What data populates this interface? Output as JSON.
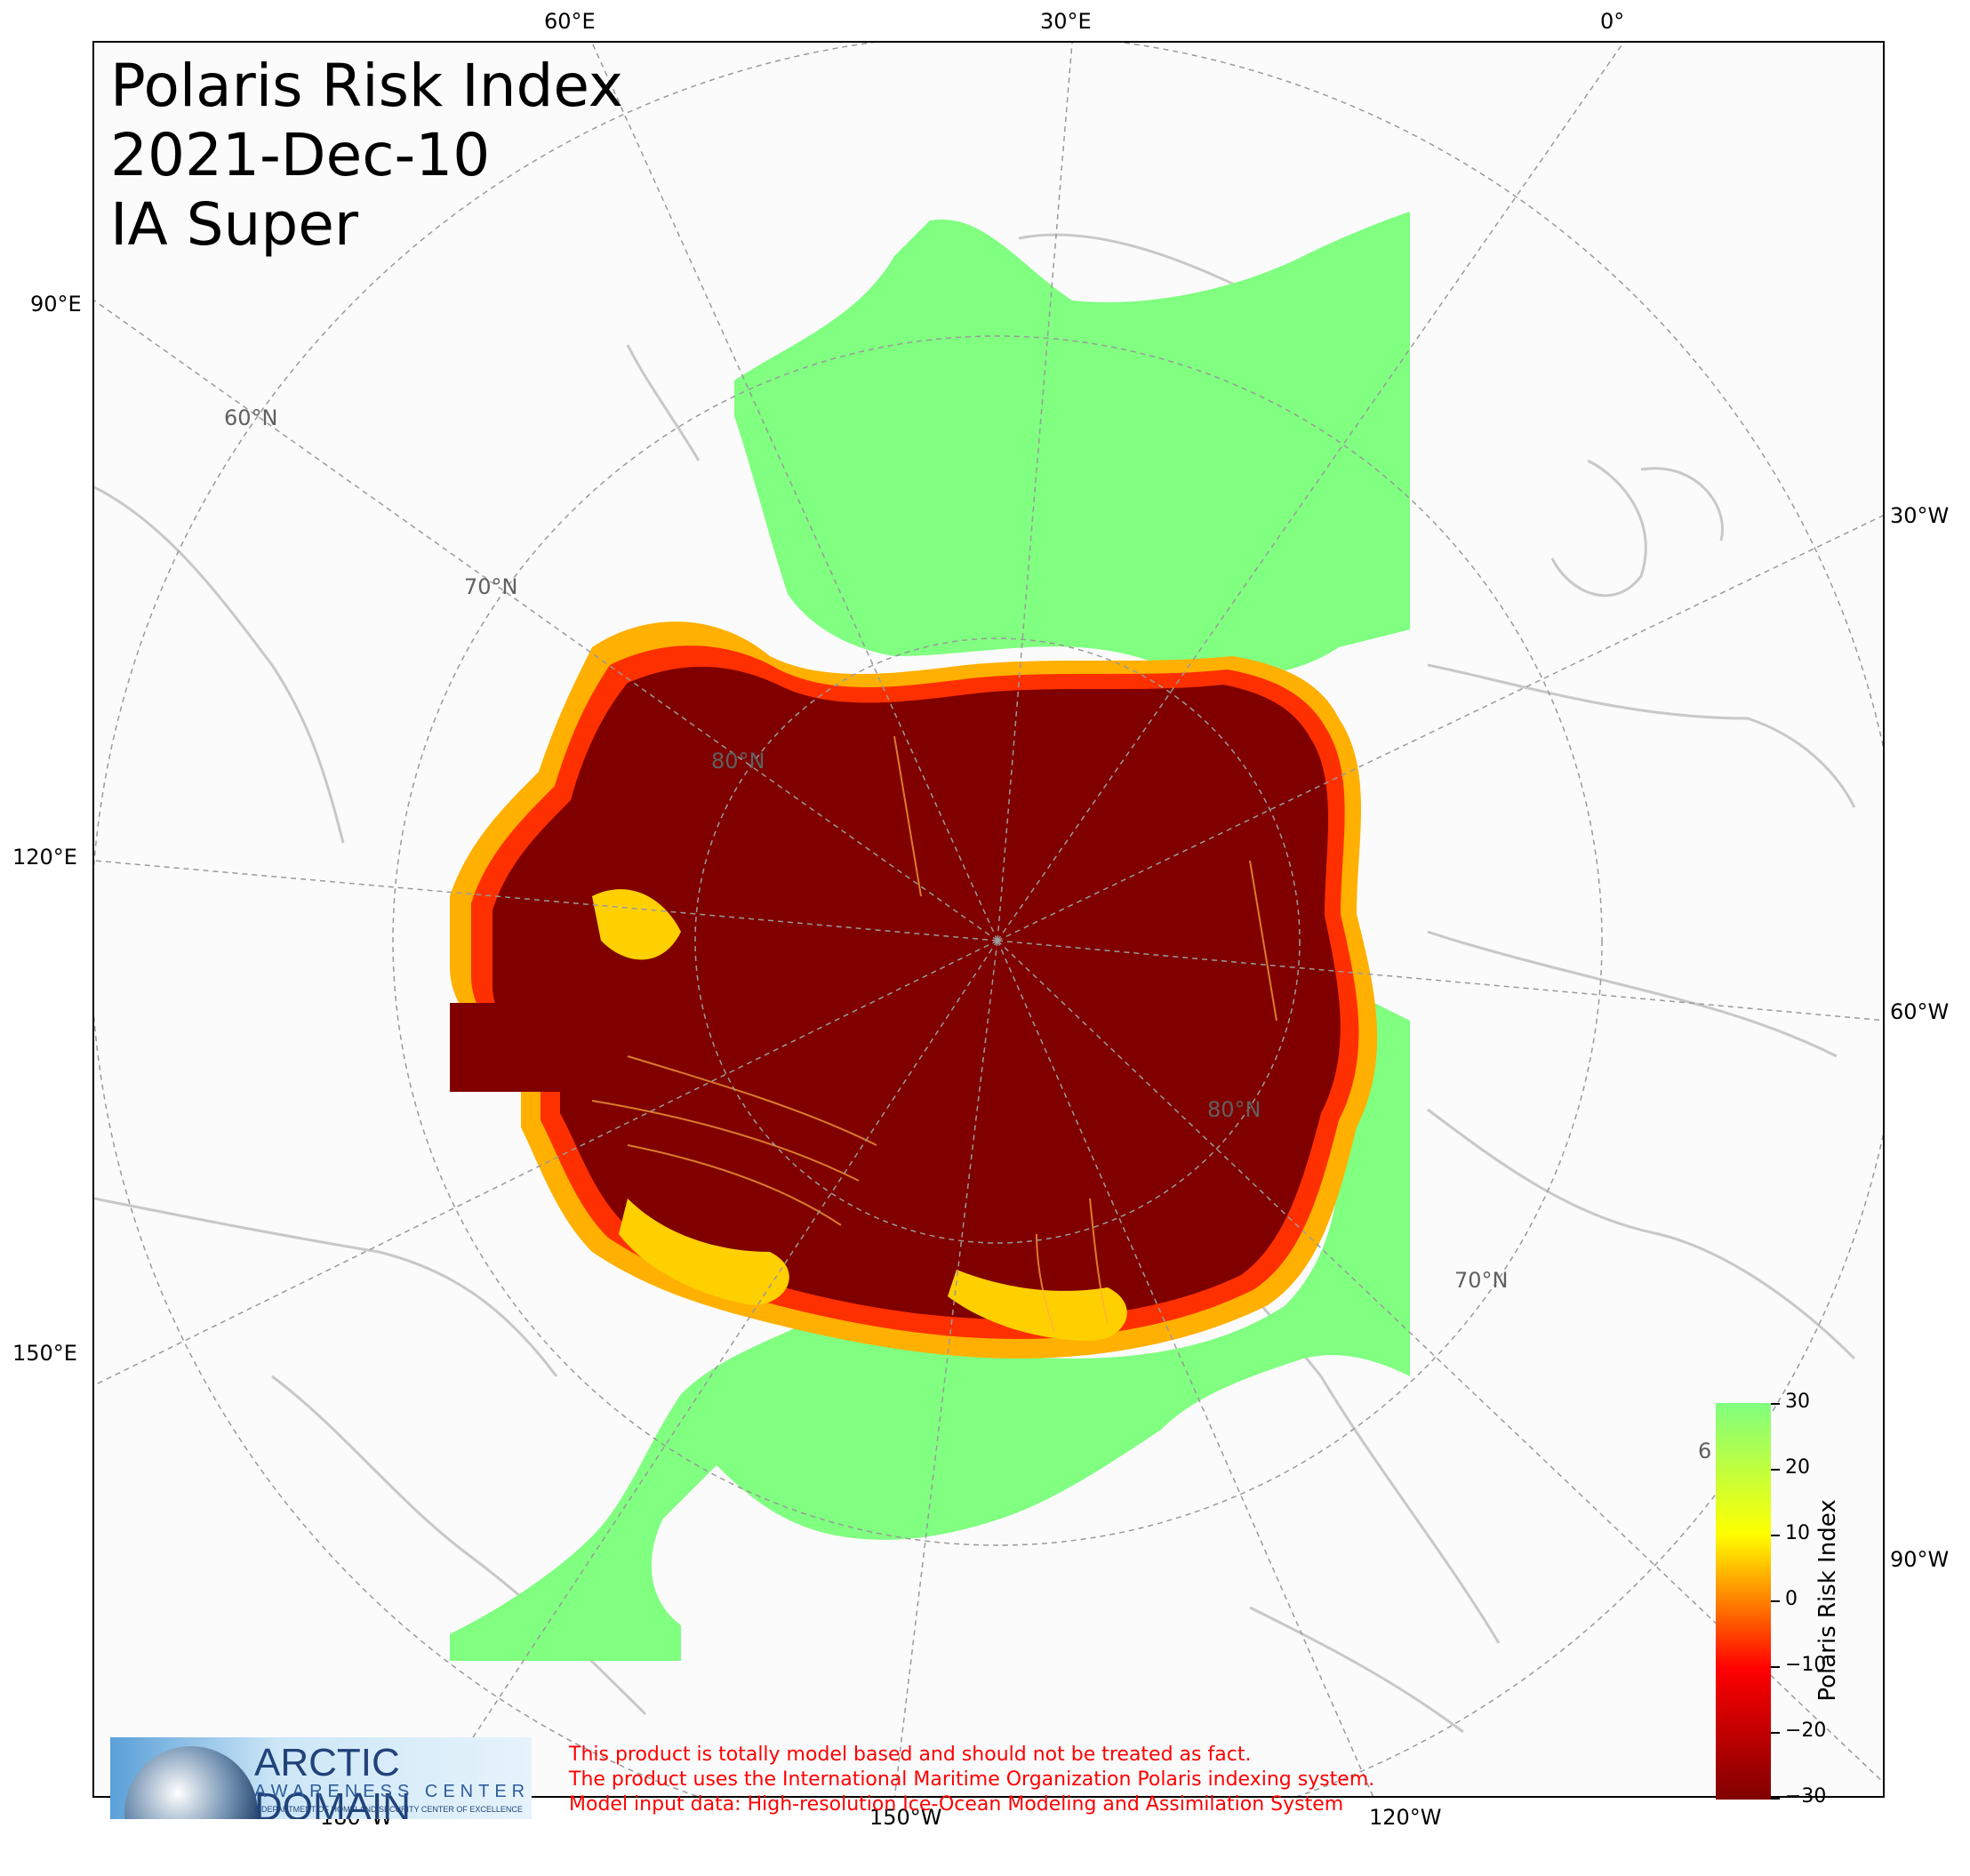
{
  "title": {
    "line1": "Polaris Risk Index",
    "line2": "2021-Dec-10",
    "line3": "IA Super"
  },
  "longitude_labels": {
    "top": [
      "60°E",
      "30°E",
      "0°"
    ],
    "left": [
      "90°E",
      "120°E",
      "150°E"
    ],
    "right": [
      "30°W",
      "60°W",
      "90°W"
    ],
    "bottom": [
      "180°W",
      "150°W",
      "120°W"
    ]
  },
  "latitude_labels": [
    "60°N",
    "70°N",
    "80°N",
    "80°N",
    "70°N",
    "6"
  ],
  "colorbar": {
    "title": "Polaris Risk Index",
    "ticks": [
      "30",
      "20",
      "10",
      "0",
      "−10",
      "−20",
      "−30"
    ],
    "range": [
      -30,
      30
    ],
    "colors": [
      "#80ff80",
      "#ffff00",
      "#ff8000",
      "#ff0000",
      "#800000"
    ]
  },
  "logo": {
    "title": "ARCTIC DOMAIN",
    "subtitle": "AWARENESS CENTER",
    "department": "A DEPARTMENT OF HOMELAND SECURITY CENTER OF EXCELLENCE"
  },
  "disclaimer": {
    "line1": "This product is totally model based and should not be treated as fact.",
    "line2": "The product uses the International Maritime Organization Polaris indexing system.",
    "line3": "Model input data: High-resolution Ice-Ocean Modeling and Assimilation System"
  },
  "colors": {
    "high_risk": "#800000",
    "low_risk": "#80ff80",
    "land": "#fbfbfb",
    "coastline": "#c8c8c8",
    "grid": "#9a9a9a"
  }
}
